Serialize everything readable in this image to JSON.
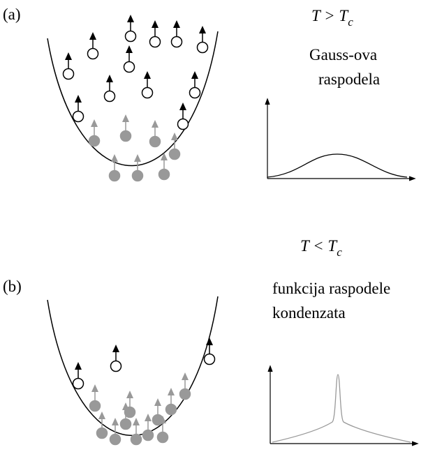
{
  "panels": [
    {
      "label": "(a)",
      "condition": {
        "main": "T > T",
        "subscript": "c"
      },
      "caption": [
        "Gauss-ova",
        "raspodela"
      ]
    },
    {
      "label": "(b)",
      "condition": {
        "main": "T < T",
        "subscript": "c"
      },
      "caption": [
        "funkcija raspodele",
        "kondenzata"
      ]
    }
  ]
}
